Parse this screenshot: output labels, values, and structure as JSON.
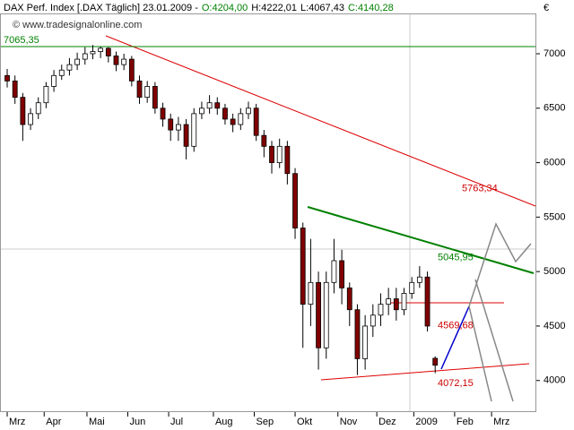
{
  "chart_data": {
    "type": "candlestick",
    "title": "DAX Perf. Index [.DAX  Täglich] 23.01.2009 -",
    "quote": [
      {
        "label": "O:4204,00",
        "color": "#008000"
      },
      {
        "label": "H:4222,01",
        "color": "#000000"
      },
      {
        "label": "L:4067,43",
        "color": "#000000"
      },
      {
        "label": "C:4140,28",
        "color": "#008000"
      }
    ],
    "source": "© www.tradesignalonline.com",
    "y_axis_label": "€",
    "x": [
      0,
      4,
      8,
      12,
      16,
      20,
      24,
      28,
      32,
      36,
      40,
      44,
      48,
      52,
      56,
      60,
      64,
      68,
      72,
      76,
      80,
      84,
      88,
      92,
      96,
      100,
      104,
      108,
      112,
      116,
      120,
      124,
      128,
      132,
      136,
      140,
      144,
      148,
      152,
      156,
      160,
      164,
      168,
      172,
      176,
      180,
      184,
      188,
      192,
      196,
      200,
      204,
      208,
      212,
      216,
      220
    ],
    "open": [
      6800,
      6750,
      6600,
      6350,
      6450,
      6550,
      6700,
      6800,
      6850,
      6900,
      6950,
      7000,
      7020,
      7050,
      6980,
      6900,
      6950,
      6750,
      6600,
      6700,
      6500,
      6400,
      6300,
      6350,
      6150,
      6450,
      6500,
      6550,
      6500,
      6400,
      6350,
      6450,
      6500,
      6250,
      6150,
      6000,
      6150,
      5900,
      5400,
      4700,
      4900,
      4300,
      4900,
      5100,
      4850,
      4650,
      4200,
      4500,
      4600,
      4700,
      4750,
      4650,
      4800,
      4900,
      4950,
      4204
    ],
    "high": [
      6860,
      6800,
      6640,
      6500,
      6600,
      6740,
      6850,
      6900,
      6960,
      7010,
      7060,
      7080,
      7065,
      7060,
      7020,
      7000,
      6980,
      6800,
      6750,
      6740,
      6550,
      6450,
      6420,
      6400,
      6500,
      6560,
      6620,
      6600,
      6540,
      6450,
      6500,
      6560,
      6540,
      6300,
      6200,
      6220,
      6200,
      5950,
      5450,
      5300,
      5000,
      5000,
      5300,
      5200,
      4900,
      4700,
      4600,
      4700,
      4800,
      4850,
      4850,
      4850,
      4950,
      5050,
      5000,
      4222.01
    ],
    "low": [
      6690,
      6540,
      6200,
      6300,
      6400,
      6500,
      6650,
      6760,
      6800,
      6850,
      6900,
      6950,
      6960,
      6920,
      6840,
      6850,
      6700,
      6540,
      6550,
      6450,
      6330,
      6200,
      6200,
      6030,
      6100,
      6400,
      6450,
      6440,
      6350,
      6280,
      6300,
      6400,
      6200,
      6050,
      5900,
      5950,
      5800,
      5300,
      4300,
      4500,
      4100,
      4200,
      4800,
      4700,
      4500,
      4050,
      4100,
      4400,
      4500,
      4600,
      4550,
      4600,
      4750,
      4850,
      4450,
      4067.43
    ],
    "close": [
      6750,
      6600,
      6350,
      6450,
      6550,
      6700,
      6800,
      6850,
      6900,
      6950,
      7000,
      7020,
      7050,
      6980,
      6900,
      6950,
      6750,
      6600,
      6700,
      6500,
      6400,
      6300,
      6350,
      6150,
      6450,
      6500,
      6550,
      6500,
      6400,
      6350,
      6450,
      6500,
      6250,
      6150,
      6000,
      6150,
      5900,
      5400,
      4700,
      4900,
      4300,
      4900,
      5100,
      4850,
      4650,
      4200,
      4500,
      4600,
      4700,
      4750,
      4650,
      4800,
      4900,
      4950,
      4500,
      4140.28
    ],
    "up_color": "#ffffff",
    "down_color": "#800000",
    "outline_color": "#000000",
    "xlim": [
      -3.7,
      272
    ],
    "xticks": [
      {
        "value": 0,
        "label": "Mrz"
      },
      {
        "value": 19,
        "label": "Apr"
      },
      {
        "value": 41,
        "label": "Mai"
      },
      {
        "value": 62,
        "label": "Jun"
      },
      {
        "value": 83,
        "label": "Jul"
      },
      {
        "value": 106,
        "label": "Aug"
      },
      {
        "value": 127,
        "label": "Sep"
      },
      {
        "value": 148,
        "label": "Okt"
      },
      {
        "value": 170,
        "label": "Nov"
      },
      {
        "value": 190,
        "label": "Dez"
      },
      {
        "value": 209,
        "label": "2009"
      },
      {
        "value": 230,
        "label": "Feb"
      },
      {
        "value": 249,
        "label": "Mrz"
      }
    ],
    "ylim": [
      3710,
      7370
    ],
    "yticks": [
      4000,
      4500,
      5000,
      5500,
      6000,
      6500,
      7000
    ],
    "annotations": [
      {
        "value": 7065.35,
        "label": "7065,35",
        "color": "#008000"
      },
      {
        "value": 5763.34,
        "label": "5763,34",
        "color": "#cc0000"
      },
      {
        "value": 5045.95,
        "label": "5045,95",
        "color": "#008000"
      },
      {
        "value": 4569.68,
        "label": "4569,68",
        "color": "#cc0000"
      },
      {
        "value": 4072.15,
        "label": "4072,15",
        "color": "#cc0000"
      }
    ]
  }
}
